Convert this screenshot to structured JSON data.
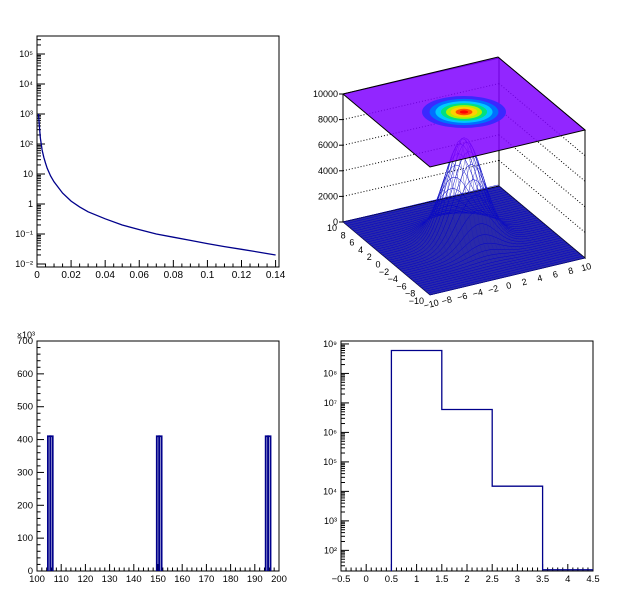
{
  "colors": {
    "line": "#00008b",
    "axis": "#000000",
    "surface": "#0000cc",
    "top_plane": "#7f00ff"
  },
  "chart_data": [
    {
      "id": "p1",
      "type": "line",
      "title": "",
      "xlabel": "",
      "ylabel": "",
      "log_y": true,
      "xlim": [
        0,
        0.142
      ],
      "ylim_exp": [
        -2.1,
        5.6
      ],
      "x_ticks": [
        "0",
        "0.02",
        "0.04",
        "0.06",
        "0.08",
        "0.1",
        "0.12",
        "0.14"
      ],
      "y_tick_labels": [
        "10⁻²",
        "10⁻¹",
        "1",
        "10",
        "10²",
        "10³",
        "10⁴",
        "10⁵"
      ],
      "function_points": {
        "x": [
          0.0009,
          0.0015,
          0.002,
          0.003,
          0.004,
          0.005,
          0.006,
          0.008,
          0.01,
          0.015,
          0.02,
          0.025,
          0.03,
          0.04,
          0.05,
          0.06,
          0.07,
          0.08,
          0.09,
          0.1,
          0.11,
          0.12,
          0.13,
          0.14
        ],
        "y": [
          1000,
          315,
          155,
          63,
          36,
          23,
          15.5,
          8.6,
          5.5,
          2.3,
          1.25,
          0.8,
          0.55,
          0.32,
          0.2,
          0.14,
          0.1,
          0.078,
          0.061,
          0.048,
          0.038,
          0.031,
          0.025,
          0.02
        ]
      }
    },
    {
      "id": "p2",
      "type": "surface",
      "title": "",
      "xlabel": "",
      "ylabel": "",
      "description_values": "2D Gaussian surface with colored contour projection on top plane",
      "x_ticks": [
        "−10",
        "−8",
        "−6",
        "−4",
        "−2",
        "0",
        "2",
        "4",
        "6",
        "8",
        "10"
      ],
      "y_ticks": [
        "−10",
        "−8",
        "−6",
        "−4",
        "−2",
        "0",
        "2",
        "4",
        "6",
        "8",
        "10"
      ],
      "z_ticks": [
        "0",
        "2000",
        "4000",
        "6000",
        "8000",
        "10000"
      ],
      "zlim": [
        0,
        10000
      ],
      "peak": 8000
    },
    {
      "id": "p3",
      "type": "bar",
      "title": "",
      "xlabel": "",
      "ylabel": "",
      "y_multiplier": "×10³",
      "xlim": [
        100,
        200
      ],
      "ylim": [
        0,
        700
      ],
      "x_ticks": [
        "100",
        "110",
        "120",
        "130",
        "140",
        "150",
        "160",
        "170",
        "180",
        "190",
        "200"
      ],
      "y_ticks": [
        "0",
        "100",
        "200",
        "300",
        "400",
        "500",
        "600",
        "700"
      ],
      "bins": [
        {
          "x": 105,
          "value": 410
        },
        {
          "x": 106,
          "value": 410
        },
        {
          "x": 150,
          "value": 410
        },
        {
          "x": 151,
          "value": 410
        },
        {
          "x": 195,
          "value": 410
        },
        {
          "x": 196,
          "value": 410
        }
      ]
    },
    {
      "id": "p4",
      "type": "histogram",
      "title": "",
      "xlabel": "",
      "ylabel": "",
      "log_y": true,
      "xlim": [
        -0.5,
        4.5
      ],
      "ylim_exp": [
        1.3,
        9.1
      ],
      "x_ticks": [
        "−0.5",
        "0",
        "0.5",
        "1",
        "1.5",
        "2",
        "2.5",
        "3",
        "3.5",
        "4",
        "4.5"
      ],
      "y_tick_labels": [
        "10²",
        "10³",
        "10⁴",
        "10⁵",
        "10⁶",
        "10⁷",
        "10⁸",
        "10⁹"
      ],
      "bins": [
        {
          "low": 0.5,
          "high": 1.5,
          "value": 600000000
        },
        {
          "low": 1.5,
          "high": 2.5,
          "value": 6000000
        },
        {
          "low": 2.5,
          "high": 3.5,
          "value": 15000
        },
        {
          "low": 3.5,
          "high": 4.5,
          "value": 22
        }
      ]
    }
  ]
}
